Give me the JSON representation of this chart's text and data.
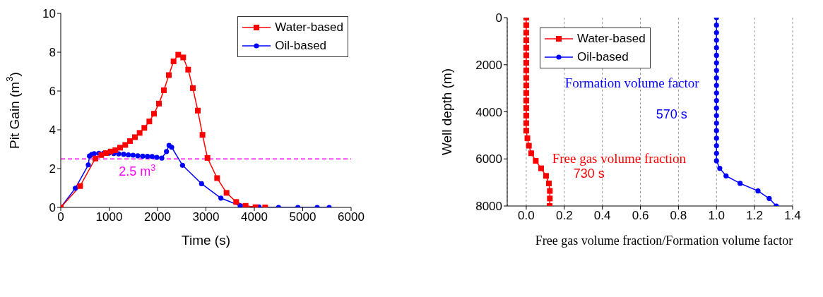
{
  "chart_data": [
    {
      "type": "line",
      "xlabel": "Time (s)",
      "ylabel": "Pit Gain (m$^{3}$)",
      "xlim": [
        0,
        6000
      ],
      "xticks": [
        0,
        1000,
        2000,
        3000,
        4000,
        5000,
        6000
      ],
      "ylim": [
        0,
        10
      ],
      "yticks": [
        0,
        2,
        4,
        6,
        8,
        10
      ],
      "grid": false,
      "legend": "top right",
      "line_style": "solid",
      "ref_lines": [
        {
          "axis": "y",
          "value": 2.5,
          "label": "2.5 m$^{3}$",
          "color": "#ff00ff",
          "line_style": "dashed"
        }
      ],
      "series": [
        {
          "name": "Water-based",
          "color": "#ff0000",
          "marker": "square",
          "x": [
            0,
            400,
            715,
            837,
            934,
            1032,
            1129,
            1226,
            1333,
            1431,
            1533,
            1630,
            1727,
            1830,
            1927,
            2029,
            2131,
            2234,
            2331,
            2428,
            2530,
            2633,
            2730,
            2832,
            2929,
            3032,
            3231,
            3426,
            3625,
            3820,
            4024,
            4224
          ],
          "values": [
            0,
            1.1,
            2.52,
            2.7,
            2.8,
            2.88,
            2.95,
            3.08,
            3.22,
            3.42,
            3.62,
            3.84,
            4.1,
            4.43,
            4.83,
            5.35,
            6.04,
            6.82,
            7.53,
            7.87,
            7.73,
            7.1,
            6.15,
            4.99,
            3.74,
            2.55,
            1.51,
            0.75,
            0.28,
            0.08,
            0.01,
            0
          ]
        },
        {
          "name": "Oil-based",
          "color": "#0000ff",
          "marker": "circle",
          "x": [
            0,
            302,
            569,
            594,
            642,
            691,
            788,
            886,
            993,
            1095,
            1197,
            1299,
            1397,
            1494,
            1591,
            1693,
            1791,
            1888,
            1985,
            2088,
            2185,
            2238,
            2292,
            2516,
            2910,
            3309,
            3708,
            4097,
            4501,
            4900,
            5299,
            5547
          ],
          "values": [
            0,
            0.99,
            2.19,
            2.65,
            2.73,
            2.77,
            2.79,
            2.79,
            2.79,
            2.78,
            2.76,
            2.74,
            2.71,
            2.69,
            2.66,
            2.64,
            2.63,
            2.62,
            2.58,
            2.54,
            2.88,
            3.2,
            3.1,
            2.17,
            1.22,
            0.48,
            0.08,
            0.02,
            0,
            0,
            0,
            0
          ]
        }
      ]
    },
    {
      "type": "line",
      "orientation": "horizontal",
      "xlabel": "Free gas volume fraction/Formation volume factor",
      "ylabel": "Well depth (m)",
      "xlim": [
        -0.1,
        1.4
      ],
      "xticks": [
        {
          "value": 0,
          "label": "0.0"
        },
        0.2,
        0.4,
        0.6,
        0.8,
        {
          "value": 1,
          "label": "1.0"
        },
        1.2,
        1.4
      ],
      "ylim": [
        8000,
        0
      ],
      "yticks": [
        0,
        2000,
        4000,
        6000,
        8000
      ],
      "grid": "x",
      "legend": "top",
      "line_style": "solid",
      "annotations": [
        "Formation volume factor",
        "570 s",
        "Free gas volume fraction",
        "730 s"
      ],
      "series": [
        {
          "name": "Water-based",
          "color": "#ff0000",
          "marker": "square",
          "x": [
            0,
            320,
            640,
            960,
            1280,
            1600,
            1920,
            2240,
            2560,
            2880,
            3200,
            3520,
            3840,
            4160,
            4480,
            4800,
            5120,
            5440,
            5760,
            6080,
            6400,
            6720,
            7040,
            7360,
            7680,
            8000
          ],
          "values": [
            0,
            0,
            0,
            0,
            0,
            0,
            0,
            0,
            0,
            0,
            0,
            0,
            0,
            0,
            0,
            0,
            0.006,
            0.014,
            0.026,
            0.05,
            0.078,
            0.104,
            0.119,
            0.124,
            0.124,
            0.123
          ]
        },
        {
          "name": "Oil-based",
          "color": "#0000ff",
          "marker": "circle",
          "x": [
            0,
            320,
            640,
            960,
            1280,
            1600,
            1920,
            2240,
            2560,
            2880,
            3200,
            3520,
            3840,
            4160,
            4480,
            4800,
            5120,
            5440,
            5760,
            6080,
            6400,
            6720,
            7040,
            7360,
            7680,
            8000
          ],
          "values": [
            1,
            1,
            1,
            1,
            1,
            1,
            1,
            1,
            1,
            1,
            1,
            1,
            1,
            1,
            1,
            1,
            1,
            1,
            1,
            1,
            1.017,
            1.05,
            1.124,
            1.218,
            1.277,
            1.314
          ]
        }
      ]
    }
  ]
}
